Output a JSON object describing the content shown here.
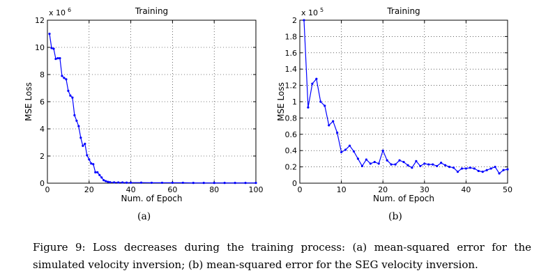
{
  "chart_data": [
    {
      "type": "line",
      "title": "Training",
      "xlabel": "Num. of Epoch",
      "ylabel": "MSE Loss",
      "y_multiplier": "x 10",
      "y_exponent": "6",
      "xlim": [
        0,
        100
      ],
      "ylim": [
        0,
        12
      ],
      "xticks": [
        "0",
        "20",
        "40",
        "60",
        "80",
        "100"
      ],
      "yticks": [
        "0",
        "2",
        "4",
        "6",
        "8",
        "10",
        "12"
      ],
      "grid": true,
      "color": "#0000ff",
      "x": [
        1,
        2,
        3,
        4,
        5,
        6,
        7,
        8,
        9,
        10,
        11,
        12,
        13,
        14,
        15,
        16,
        17,
        18,
        19,
        20,
        21,
        22,
        23,
        24,
        25,
        26,
        27,
        28,
        29,
        30,
        32,
        34,
        36,
        38,
        40,
        45,
        50,
        55,
        60,
        65,
        70,
        75,
        80,
        85,
        90,
        95,
        100
      ],
      "y": [
        11.0,
        9.95,
        9.9,
        9.15,
        9.2,
        9.2,
        7.9,
        7.75,
        7.65,
        6.8,
        6.45,
        6.3,
        5.0,
        4.6,
        4.2,
        3.35,
        2.75,
        2.9,
        2.05,
        1.75,
        1.45,
        1.4,
        0.8,
        0.8,
        0.6,
        0.42,
        0.22,
        0.15,
        0.1,
        0.07,
        0.06,
        0.05,
        0.05,
        0.04,
        0.04,
        0.04,
        0.03,
        0.03,
        0.03,
        0.03,
        0.02,
        0.02,
        0.02,
        0.02,
        0.02,
        0.02,
        0.02
      ]
    },
    {
      "type": "line",
      "title": "Training",
      "xlabel": "Num. of Epoch",
      "ylabel": "MSE Loss",
      "y_multiplier": "x 10",
      "y_exponent": "5",
      "xlim": [
        0,
        50
      ],
      "ylim": [
        0,
        2
      ],
      "xticks": [
        "0",
        "10",
        "20",
        "30",
        "40",
        "50"
      ],
      "yticks": [
        "0",
        "0.2",
        "0.4",
        "0.6",
        "0.8",
        "1",
        "1.2",
        "1.4",
        "1.6",
        "1.8",
        "2"
      ],
      "grid": true,
      "color": "#0000ff",
      "x": [
        1,
        2,
        3,
        4,
        5,
        6,
        7,
        8,
        9,
        10,
        11,
        12,
        13,
        14,
        15,
        16,
        17,
        18,
        19,
        20,
        21,
        22,
        23,
        24,
        25,
        26,
        27,
        28,
        29,
        30,
        31,
        32,
        33,
        34,
        35,
        36,
        37,
        38,
        39,
        40,
        41,
        42,
        43,
        44,
        45,
        46,
        47,
        48,
        49,
        50
      ],
      "y": [
        2.0,
        0.93,
        1.22,
        1.28,
        1.0,
        0.95,
        0.71,
        0.76,
        0.62,
        0.38,
        0.41,
        0.46,
        0.39,
        0.3,
        0.21,
        0.29,
        0.24,
        0.26,
        0.24,
        0.4,
        0.28,
        0.23,
        0.23,
        0.28,
        0.26,
        0.22,
        0.19,
        0.27,
        0.21,
        0.24,
        0.23,
        0.23,
        0.21,
        0.25,
        0.22,
        0.2,
        0.19,
        0.14,
        0.18,
        0.18,
        0.19,
        0.18,
        0.15,
        0.14,
        0.16,
        0.18,
        0.2,
        0.12,
        0.16,
        0.17
      ]
    }
  ],
  "sublabels": [
    "(a)",
    "(b)"
  ],
  "caption": "Figure 9: Loss decreases during the training process: (a) mean-squared error for the simulated velocity inversion; (b) mean-squared error for the SEG velocity inversion."
}
